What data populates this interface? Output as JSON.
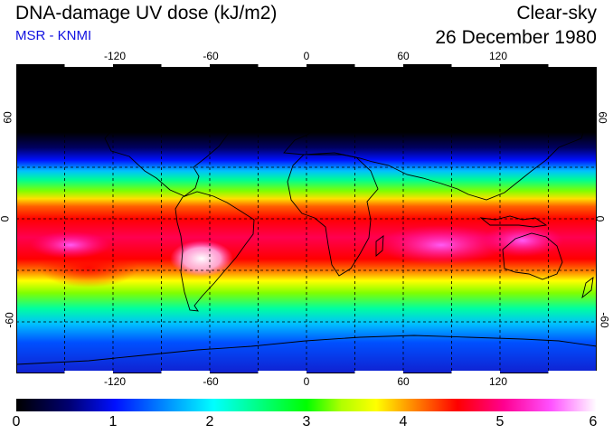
{
  "header": {
    "title": "DNA-damage UV dose (kJ/m2)",
    "subtitle": "MSR - KNMI",
    "sky_condition": "Clear-sky",
    "date": "26 December 1980"
  },
  "map": {
    "projection": "plate carree",
    "lon_range": [
      -180,
      180
    ],
    "lat_range": [
      -90,
      90
    ],
    "lon_ticks": [
      "-120",
      "-60",
      "0",
      "60",
      "120"
    ],
    "lat_ticks": [
      "60",
      "0",
      "-60"
    ]
  },
  "colorbar": {
    "min": 0,
    "max": 6,
    "ticks": [
      "0",
      "1",
      "2",
      "3",
      "4",
      "5",
      "6"
    ],
    "unit": "kJ/m2"
  },
  "colors": {
    "title_text": "#000000",
    "subtitle_text": "#1010e0",
    "scale": [
      "#000000",
      "#000070",
      "#0010ff",
      "#0080ff",
      "#00ffff",
      "#00ff80",
      "#00ff00",
      "#b0ff00",
      "#ffff00",
      "#ff9000",
      "#ff0000",
      "#ff0090",
      "#ff50ff",
      "#ffffff"
    ]
  }
}
